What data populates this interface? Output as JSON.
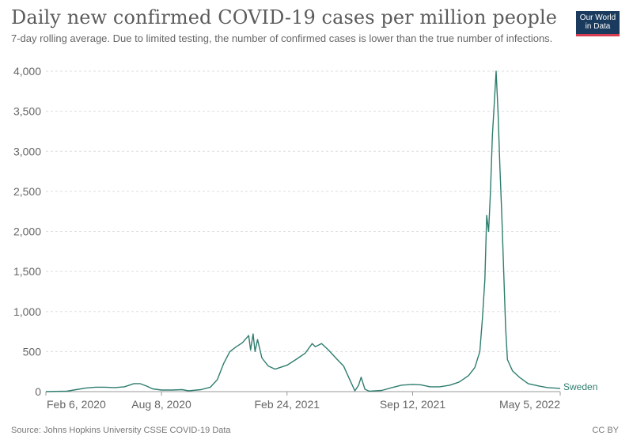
{
  "header": {
    "title": "Daily new confirmed COVID-19 cases per million people",
    "subtitle": "7-day rolling average. Due to limited testing, the number of confirmed cases is lower than the true number of infections."
  },
  "logo": {
    "line1": "Our World",
    "line2": "in Data",
    "bg": "#1a3b5e",
    "accent": "#d73c4f"
  },
  "footer": {
    "source": "Source: Johns Hopkins University CSSE COVID-19 Data",
    "license": "CC BY"
  },
  "chart_data": {
    "type": "line",
    "title": "Daily new confirmed COVID-19 cases per million people",
    "xlabel": "",
    "ylabel": "",
    "ylim": [
      0,
      4000
    ],
    "grid": true,
    "y_ticks": [
      0,
      500,
      1000,
      1500,
      2000,
      2500,
      3000,
      3500,
      4000
    ],
    "y_tick_labels": [
      "0",
      "500",
      "1,000",
      "1,500",
      "2,000",
      "2,500",
      "3,000",
      "3,500",
      "4,000"
    ],
    "x_ticks": [
      "2020-02-06",
      "2020-08-08",
      "2021-02-24",
      "2021-09-12",
      "2022-05-05"
    ],
    "x_tick_labels": [
      "Feb 6, 2020",
      "Aug 8, 2020",
      "Feb 24, 2021",
      "Sep 12, 2021",
      "May 5, 2022"
    ],
    "series": [
      {
        "name": "Sweden",
        "color": "#2e7d6e",
        "points": [
          [
            "2020-02-06",
            0
          ],
          [
            "2020-03-10",
            5
          ],
          [
            "2020-03-25",
            25
          ],
          [
            "2020-04-10",
            45
          ],
          [
            "2020-04-25",
            55
          ],
          [
            "2020-05-10",
            55
          ],
          [
            "2020-05-25",
            50
          ],
          [
            "2020-06-10",
            60
          ],
          [
            "2020-06-25",
            100
          ],
          [
            "2020-07-05",
            100
          ],
          [
            "2020-07-15",
            70
          ],
          [
            "2020-07-25",
            35
          ],
          [
            "2020-08-08",
            20
          ],
          [
            "2020-08-25",
            20
          ],
          [
            "2020-09-10",
            25
          ],
          [
            "2020-09-20",
            10
          ],
          [
            "2020-10-10",
            25
          ],
          [
            "2020-10-25",
            55
          ],
          [
            "2020-11-05",
            150
          ],
          [
            "2020-11-15",
            350
          ],
          [
            "2020-11-25",
            500
          ],
          [
            "2020-12-05",
            560
          ],
          [
            "2020-12-15",
            610
          ],
          [
            "2020-12-25",
            700
          ],
          [
            "2020-12-28",
            520
          ],
          [
            "2021-01-01",
            720
          ],
          [
            "2021-01-04",
            500
          ],
          [
            "2021-01-08",
            650
          ],
          [
            "2021-01-15",
            420
          ],
          [
            "2021-01-25",
            320
          ],
          [
            "2021-02-05",
            280
          ],
          [
            "2021-02-24",
            330
          ],
          [
            "2021-03-10",
            400
          ],
          [
            "2021-03-25",
            480
          ],
          [
            "2021-04-05",
            600
          ],
          [
            "2021-04-10",
            560
          ],
          [
            "2021-04-20",
            600
          ],
          [
            "2021-05-01",
            520
          ],
          [
            "2021-05-15",
            400
          ],
          [
            "2021-05-25",
            320
          ],
          [
            "2021-06-05",
            130
          ],
          [
            "2021-06-12",
            10
          ],
          [
            "2021-06-18",
            80
          ],
          [
            "2021-06-22",
            180
          ],
          [
            "2021-06-28",
            30
          ],
          [
            "2021-07-05",
            5
          ],
          [
            "2021-07-25",
            15
          ],
          [
            "2021-08-10",
            50
          ],
          [
            "2021-08-25",
            80
          ],
          [
            "2021-09-12",
            90
          ],
          [
            "2021-09-25",
            85
          ],
          [
            "2021-10-10",
            60
          ],
          [
            "2021-10-25",
            60
          ],
          [
            "2021-11-10",
            80
          ],
          [
            "2021-11-25",
            120
          ],
          [
            "2021-12-10",
            200
          ],
          [
            "2021-12-20",
            300
          ],
          [
            "2021-12-28",
            500
          ],
          [
            "2022-01-01",
            900
          ],
          [
            "2022-01-05",
            1400
          ],
          [
            "2022-01-08",
            2200
          ],
          [
            "2022-01-11",
            2000
          ],
          [
            "2022-01-14",
            2500
          ],
          [
            "2022-01-17",
            3200
          ],
          [
            "2022-01-20",
            3600
          ],
          [
            "2022-01-23",
            4000
          ],
          [
            "2022-01-26",
            3500
          ],
          [
            "2022-01-29",
            2800
          ],
          [
            "2022-02-01",
            2200
          ],
          [
            "2022-02-04",
            1500
          ],
          [
            "2022-02-07",
            800
          ],
          [
            "2022-02-10",
            400
          ],
          [
            "2022-02-18",
            260
          ],
          [
            "2022-03-01",
            180
          ],
          [
            "2022-03-15",
            100
          ],
          [
            "2022-04-01",
            70
          ],
          [
            "2022-04-15",
            50
          ],
          [
            "2022-05-05",
            40
          ]
        ]
      }
    ],
    "legend": "end-of-line label"
  }
}
